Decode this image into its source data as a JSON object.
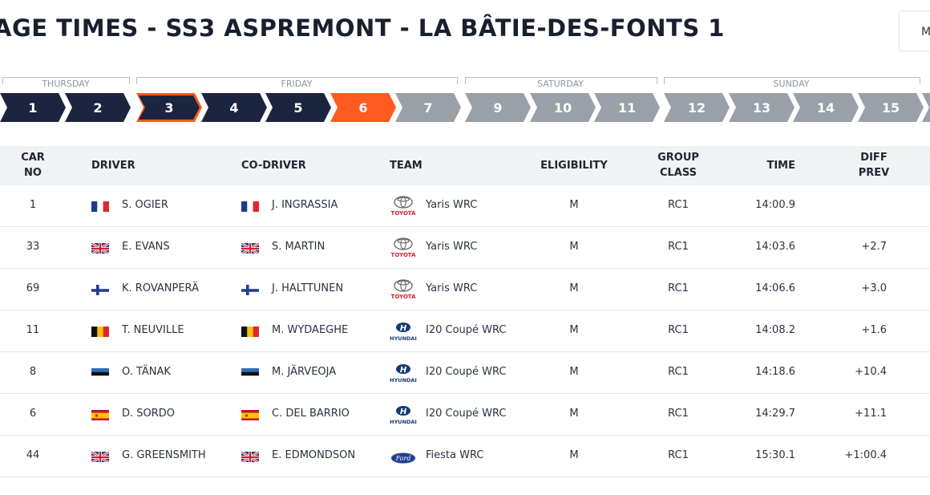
{
  "page": {
    "title": "AGE TIMES - SS3 ASPREMONT - LA BÂTIE-DES-FONTS 1",
    "menu_label": "M"
  },
  "days": [
    "THURSDAY",
    "FRIDAY",
    "SATURDAY",
    "SUNDAY"
  ],
  "stages": [
    {
      "num": "1",
      "state": "done"
    },
    {
      "num": "2",
      "state": "done"
    },
    {
      "num": "3",
      "state": "selected"
    },
    {
      "num": "4",
      "state": "done"
    },
    {
      "num": "5",
      "state": "done"
    },
    {
      "num": "6",
      "state": "active"
    },
    {
      "num": "7",
      "state": "future"
    },
    {
      "num": "9",
      "state": "future"
    },
    {
      "num": "10",
      "state": "future"
    },
    {
      "num": "11",
      "state": "future"
    },
    {
      "num": "12",
      "state": "future"
    },
    {
      "num": "13",
      "state": "future"
    },
    {
      "num": "14",
      "state": "future"
    },
    {
      "num": "15",
      "state": "future"
    }
  ],
  "columns": {
    "car_no": [
      "CAR",
      "NO"
    ],
    "driver": "DRIVER",
    "co_driver": "CO-DRIVER",
    "team": "TEAM",
    "eligibility": "ELIGIBILITY",
    "group_class": [
      "GROUP",
      "CLASS"
    ],
    "time": "TIME",
    "diff_prev": [
      "DIFF",
      "PREV"
    ]
  },
  "rows": [
    {
      "car": "1",
      "driver": "S. OGIER",
      "driver_flag": "fr",
      "codriver": "J. INGRASSIA",
      "codriver_flag": "fr",
      "brand": "toyota",
      "team": "Yaris WRC",
      "elig": "M",
      "class": "RC1",
      "time": "14:00.9",
      "diff": ""
    },
    {
      "car": "33",
      "driver": "E. EVANS",
      "driver_flag": "gb",
      "codriver": "S. MARTIN",
      "codriver_flag": "gb",
      "brand": "toyota",
      "team": "Yaris WRC",
      "elig": "M",
      "class": "RC1",
      "time": "14:03.6",
      "diff": "+2.7"
    },
    {
      "car": "69",
      "driver": "K. ROVANPERÄ",
      "driver_flag": "fi",
      "codriver": "J. HALTTUNEN",
      "codriver_flag": "fi",
      "brand": "toyota",
      "team": "Yaris WRC",
      "elig": "M",
      "class": "RC1",
      "time": "14:06.6",
      "diff": "+3.0"
    },
    {
      "car": "11",
      "driver": "T. NEUVILLE",
      "driver_flag": "be",
      "codriver": "M. WYDAEGHE",
      "codriver_flag": "be",
      "brand": "hyundai",
      "team": "I20 Coupé WRC",
      "elig": "M",
      "class": "RC1",
      "time": "14:08.2",
      "diff": "+1.6"
    },
    {
      "car": "8",
      "driver": "O. TÄNAK",
      "driver_flag": "ee",
      "codriver": "M. JÄRVEOJA",
      "codriver_flag": "ee",
      "brand": "hyundai",
      "team": "I20 Coupé WRC",
      "elig": "M",
      "class": "RC1",
      "time": "14:18.6",
      "diff": "+10.4"
    },
    {
      "car": "6",
      "driver": "D. SORDO",
      "driver_flag": "es",
      "codriver": "C. DEL BARRIO",
      "codriver_flag": "es",
      "brand": "hyundai",
      "team": "I20 Coupé WRC",
      "elig": "M",
      "class": "RC1",
      "time": "14:29.7",
      "diff": "+11.1"
    },
    {
      "car": "44",
      "driver": "G. GREENSMITH",
      "driver_flag": "gb",
      "codriver": "E. EDMONDSON",
      "codriver_flag": "gb",
      "brand": "ford",
      "team": "Fiesta WRC",
      "elig": "M",
      "class": "RC1",
      "time": "15:30.1",
      "diff": "+1:00.4"
    }
  ],
  "brand_text": {
    "toyota": "TOYOTA",
    "hyundai": "HYUNDAI",
    "ford": "Ford"
  },
  "colors": {
    "navy": "#1b2540",
    "orange": "#ff5a1f",
    "grey": "#9aa0a7"
  }
}
